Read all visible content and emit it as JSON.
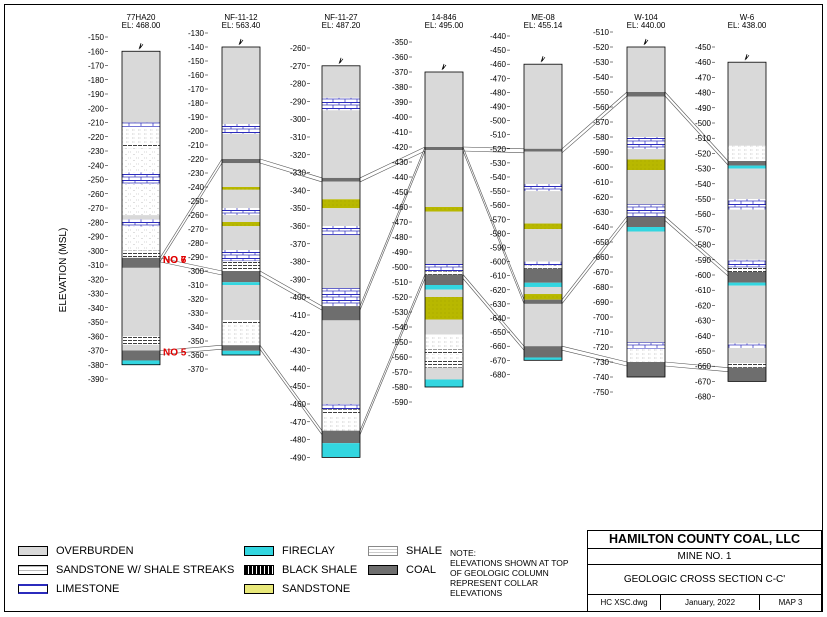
{
  "ylabel": "ELEVATION (MSL)",
  "wells": [
    {
      "name": "77HA20",
      "el": "EL: 468.00",
      "top": -160,
      "bottom": -380,
      "ticks": [
        "-150",
        "-160",
        "-170",
        "-180",
        "-190",
        "-200",
        "-210",
        "-220",
        "-230",
        "-240",
        "-250",
        "-260",
        "-270",
        "-280",
        "-290",
        "-300",
        "-310",
        "-320",
        "-330",
        "-340",
        "-350",
        "-360",
        "-370",
        "-380",
        "-390"
      ]
    },
    {
      "name": "NF-11-12",
      "el": "EL: 563.40",
      "top": -140,
      "bottom": -360,
      "ticks": [
        "-130",
        "-140",
        "-150",
        "-160",
        "-170",
        "-180",
        "-190",
        "-200",
        "-210",
        "-220",
        "-230",
        "-240",
        "-250",
        "-260",
        "-270",
        "-280",
        "-290",
        "-300",
        "-310",
        "-320",
        "-330",
        "-340",
        "-350",
        "-360",
        "-370"
      ]
    },
    {
      "name": "NF-11-27",
      "el": "EL: 487.20",
      "top": -270,
      "bottom": -490,
      "ticks": [
        "-260",
        "-270",
        "-280",
        "-290",
        "-300",
        "-310",
        "-320",
        "-330",
        "-340",
        "-350",
        "-360",
        "-370",
        "-380",
        "-390",
        "-400",
        "-410",
        "-420",
        "-430",
        "-440",
        "-450",
        "-460",
        "-470",
        "-480",
        "-490"
      ]
    },
    {
      "name": "14-846",
      "el": "EL: 495.00",
      "top": -370,
      "bottom": -580,
      "ticks": [
        "-350",
        "-360",
        "-370",
        "-380",
        "-390",
        "-400",
        "-410",
        "-420",
        "-430",
        "-440",
        "-450",
        "-460",
        "-470",
        "-480",
        "-490",
        "-500",
        "-510",
        "-520",
        "-530",
        "-540",
        "-550",
        "-560",
        "-570",
        "-580",
        "-590"
      ]
    },
    {
      "name": "ME-08",
      "el": "EL: 455.14",
      "top": -460,
      "bottom": -670,
      "ticks": [
        "-440",
        "-450",
        "-460",
        "-470",
        "-480",
        "-490",
        "-500",
        "-510",
        "-520",
        "-530",
        "-540",
        "-550",
        "-560",
        "-570",
        "-580",
        "-590",
        "-600",
        "-610",
        "-620",
        "-630",
        "-640",
        "-650",
        "-660",
        "-670",
        "-680"
      ]
    },
    {
      "name": "W-104",
      "el": "EL: 440.00",
      "top": -520,
      "bottom": -740,
      "ticks": [
        "-510",
        "-520",
        "-530",
        "-540",
        "-550",
        "-560",
        "-570",
        "-580",
        "-590",
        "-600",
        "-610",
        "-620",
        "-630",
        "-640",
        "-650",
        "-660",
        "-670",
        "-680",
        "-690",
        "-700",
        "-710",
        "-720",
        "-730",
        "-740",
        "-750"
      ]
    },
    {
      "name": "W-6",
      "el": "EL: 438.00",
      "top": -460,
      "bottom": -670,
      "ticks": [
        "-450",
        "-460",
        "-470",
        "-480",
        "-490",
        "-500",
        "-510",
        "-520",
        "-530",
        "-540",
        "-550",
        "-560",
        "-570",
        "-580",
        "-590",
        "-600",
        "-610",
        "-620",
        "-630",
        "-640",
        "-650",
        "-660",
        "-670",
        "-680"
      ]
    }
  ],
  "seams": [
    {
      "label": "NO 7"
    },
    {
      "label": "NO 6"
    },
    {
      "label": "NO 5"
    }
  ],
  "legend": {
    "overburden": "OVERBURDEN",
    "sandstone_shale": "SANDSTONE W/ SHALE STREAKS",
    "limestone": "LIMESTONE",
    "fireclay": "FIRECLAY",
    "black_shale": "BLACK SHALE",
    "sandstone": "SANDSTONE",
    "shale": "SHALE",
    "coal": "COAL"
  },
  "note": [
    "NOTE:",
    "ELEVATIONS SHOWN AT TOP",
    "OF GEOLOGIC COLUMN",
    "REPRESENT COLLAR",
    "ELEVATIONS"
  ],
  "titleblock": {
    "company": "HAMILTON COUNTY COAL, LLC",
    "mine": "MINE NO. 1",
    "title": "GEOLOGIC CROSS SECTION C-C'",
    "file": "HC XSC.dwg",
    "date": "January, 2022",
    "map": "MAP 3"
  },
  "colors": {
    "overburden": "#d9d9d9",
    "coal": "#6e6e6e",
    "fireclay": "#33d6e0",
    "sandstone": "#b8b800",
    "limestone": "#2b2bbd",
    "seam_label": "#e00000"
  }
}
